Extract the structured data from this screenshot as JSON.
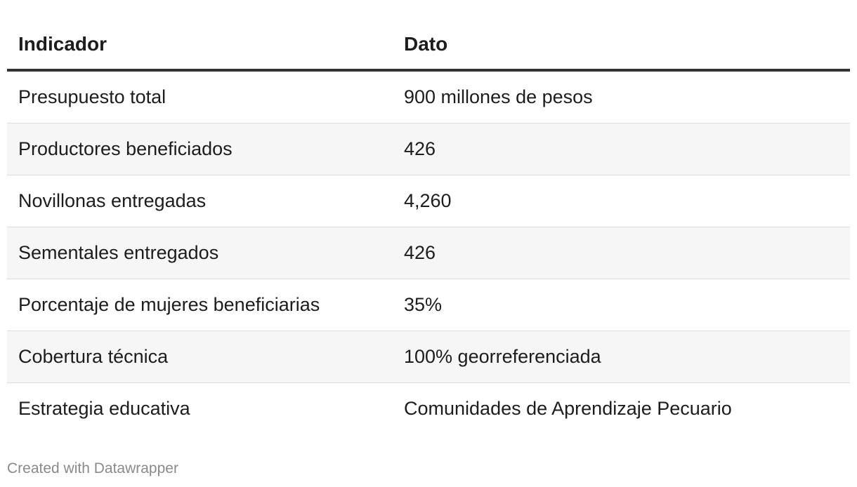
{
  "table": {
    "headers": [
      "Indicador",
      "Dato"
    ],
    "rows": [
      [
        "Presupuesto total",
        "900 millones de pesos"
      ],
      [
        "Productores beneficiados",
        "426"
      ],
      [
        "Novillonas entregadas",
        "4,260"
      ],
      [
        "Sementales entregados",
        "426"
      ],
      [
        "Porcentaje de mujeres beneficiarias",
        "35%"
      ],
      [
        "Cobertura técnica",
        "100% georreferenciada"
      ],
      [
        "Estrategia educativa",
        "Comunidades de Aprendizaje Pecuario"
      ]
    ]
  },
  "footer": {
    "credit": "Created with Datawrapper"
  }
}
